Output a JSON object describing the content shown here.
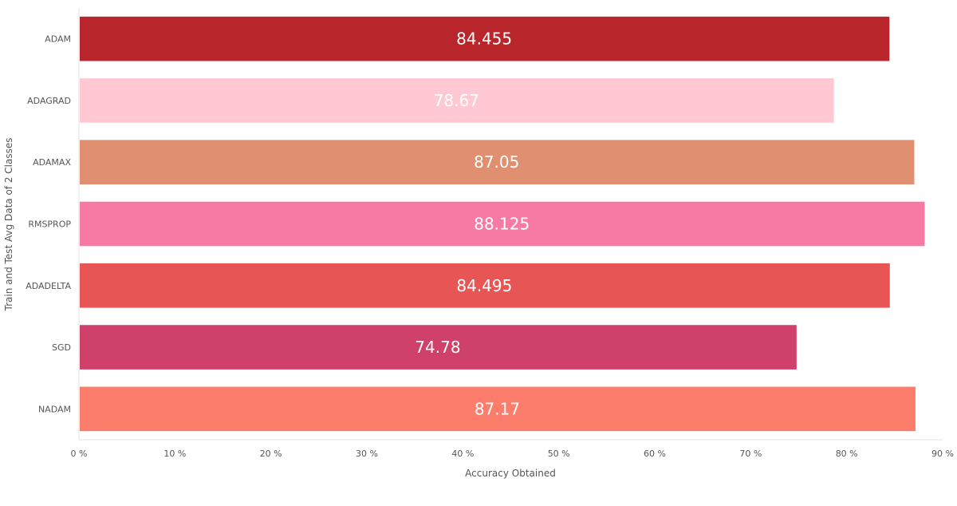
{
  "chart_data": {
    "type": "bar",
    "orientation": "horizontal",
    "categories": [
      "ADAM",
      "ADAGRAD",
      "ADAMAX",
      "RMSPROP",
      "ADADELTA",
      "SGD",
      "NADAM"
    ],
    "values": [
      84.455,
      78.67,
      87.05,
      88.125,
      84.495,
      74.78,
      87.17
    ],
    "value_labels": [
      "84.455",
      "78.67",
      "87.05",
      "88.125",
      "84.495",
      "74.78",
      "87.17"
    ],
    "colors": [
      "#b8262c",
      "#ffc8d2",
      "#e09070",
      "#f77aa4",
      "#e85555",
      "#cf416a",
      "#fc7d6b"
    ],
    "title": "",
    "xlabel": "Accuracy Obtained",
    "ylabel": "Train and Test Avg Data of 2 Classes",
    "xlim": [
      0,
      90
    ],
    "xticks": [
      0,
      10,
      20,
      30,
      40,
      50,
      60,
      70,
      80,
      90
    ],
    "xtick_suffix": " %",
    "grid": false,
    "legend": "none"
  }
}
